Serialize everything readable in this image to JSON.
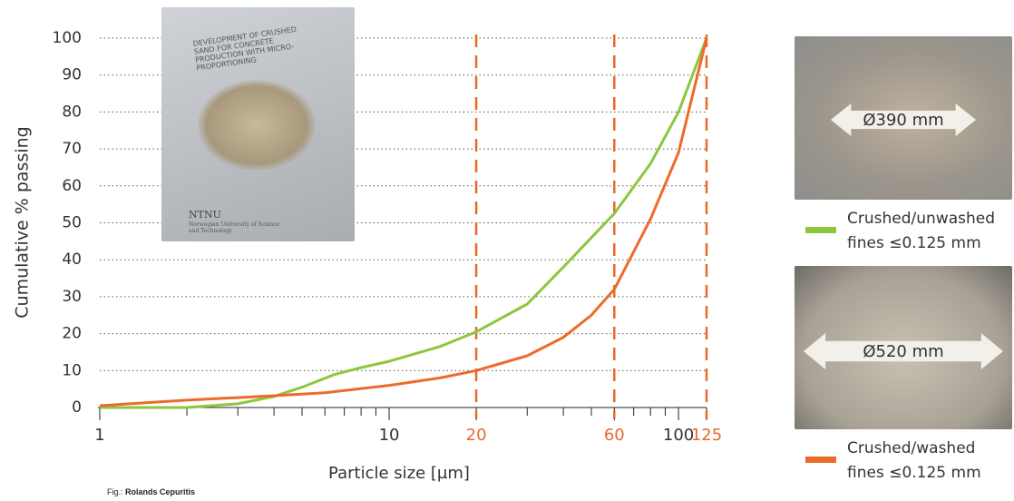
{
  "chart_data": {
    "type": "line",
    "xlabel": "Particle size [µm]",
    "ylabel": "Cumulative % passing",
    "xscale": "log",
    "xlim": [
      1,
      125
    ],
    "ylim": [
      0,
      100
    ],
    "xticks": [
      1,
      10,
      20,
      60,
      100,
      125
    ],
    "xminorticks": [
      2,
      3,
      4,
      5,
      6,
      7,
      8,
      9,
      30,
      40,
      50,
      70,
      80,
      90
    ],
    "yticks": [
      0,
      10,
      20,
      30,
      40,
      50,
      60,
      70,
      80,
      90,
      100
    ],
    "grid": true,
    "reference_lines": {
      "values": [
        20,
        60,
        125
      ],
      "color": "#e8692a"
    },
    "series": [
      {
        "name": "Crushed/unwashed fines ≤0.125 mm",
        "color": "#8dc63f",
        "x": [
          1,
          2,
          3,
          4,
          5,
          6.5,
          8,
          10,
          15,
          20,
          30,
          40,
          60,
          80,
          100,
          125
        ],
        "values": [
          0,
          0,
          1,
          3,
          5.5,
          9,
          10.8,
          12.5,
          16.5,
          20.5,
          28,
          38,
          52.5,
          66,
          80,
          100
        ]
      },
      {
        "name": "Crushed/washed fines ≤0.125 mm",
        "color": "#ed6b2a",
        "x": [
          1,
          2,
          4,
          6,
          10,
          15,
          20,
          30,
          40,
          50,
          60,
          80,
          100,
          125
        ],
        "values": [
          0.5,
          2,
          3.2,
          4,
          6,
          8,
          10,
          14,
          19,
          25,
          32,
          51,
          69,
          100
        ]
      }
    ]
  },
  "photos": {
    "inset_title": "DEVELOPMENT OF CRUSHED SAND FOR CONCRETE PRODUCTION WITH MICRO-PROPORTIONING",
    "inset_logo": "NTNU",
    "inset_university": "Norwegian University of Science and Technology",
    "spread_1": "Ø390 mm",
    "spread_2": "Ø520 mm"
  },
  "caption": {
    "prefix": "Fig.:",
    "author": "Rolands Cepuritis"
  }
}
